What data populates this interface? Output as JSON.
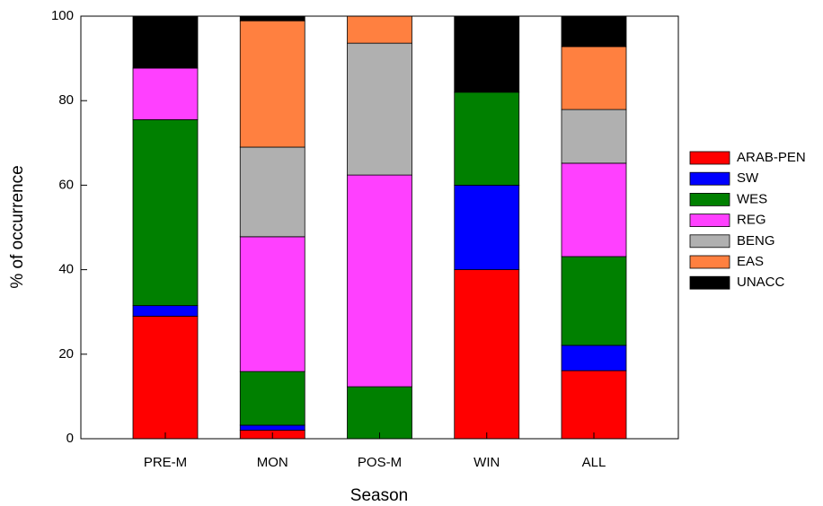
{
  "chart_data": {
    "type": "stacked_bar",
    "xlabel": "Season",
    "ylabel": "% of occurrence",
    "categories": [
      "PRE-M",
      "MON",
      "POS-M",
      "WIN",
      "ALL"
    ],
    "series": [
      {
        "name": "ARAB-PEN",
        "color": "#ff0000",
        "values": [
          29,
          2,
          0,
          40,
          16.1
        ]
      },
      {
        "name": "SW",
        "color": "#0000ff",
        "values": [
          2.5,
          1.2,
          0,
          20,
          6
        ]
      },
      {
        "name": "WES",
        "color": "#008000",
        "values": [
          44,
          12.7,
          12.3,
          22,
          21
        ]
      },
      {
        "name": "REG",
        "color": "#ff40ff",
        "values": [
          12.2,
          31.9,
          50.1,
          0,
          22.1
        ]
      },
      {
        "name": "BENG",
        "color": "#b0b0b0",
        "values": [
          0,
          21.2,
          31.2,
          0,
          12.7
        ]
      },
      {
        "name": "EAS",
        "color": "#ff8040",
        "values": [
          0,
          29.9,
          6.4,
          0,
          14.9
        ]
      },
      {
        "name": "UNACC",
        "color": "#000000",
        "values": [
          12.3,
          1.1,
          0,
          18,
          7.2
        ]
      }
    ],
    "ylim": [
      0,
      100
    ],
    "yticks": [
      0,
      20,
      40,
      60,
      80,
      100
    ],
    "legend": "right"
  }
}
